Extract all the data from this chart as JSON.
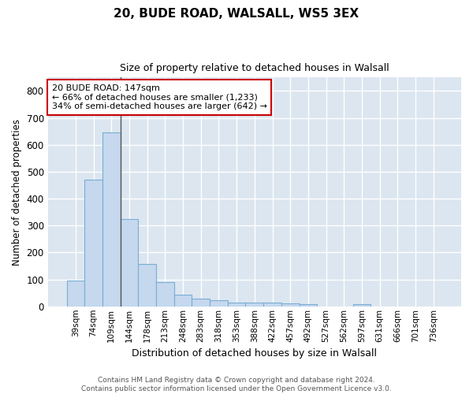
{
  "title1": "20, BUDE ROAD, WALSALL, WS5 3EX",
  "title2": "Size of property relative to detached houses in Walsall",
  "xlabel": "Distribution of detached houses by size in Walsall",
  "ylabel": "Number of detached properties",
  "categories": [
    "39sqm",
    "74sqm",
    "109sqm",
    "144sqm",
    "178sqm",
    "213sqm",
    "248sqm",
    "283sqm",
    "318sqm",
    "353sqm",
    "388sqm",
    "422sqm",
    "457sqm",
    "492sqm",
    "527sqm",
    "562sqm",
    "597sqm",
    "631sqm",
    "666sqm",
    "701sqm",
    "736sqm"
  ],
  "values": [
    95,
    470,
    645,
    325,
    158,
    90,
    42,
    28,
    22,
    15,
    15,
    13,
    10,
    8,
    0,
    0,
    8,
    0,
    0,
    0,
    0
  ],
  "bar_color": "#c5d8ee",
  "bar_edge_color": "#7aadd4",
  "plot_bg_color": "#dce6f0",
  "grid_color": "#ffffff",
  "vline_color": "#555555",
  "annotation_line1": "20 BUDE ROAD: 147sqm",
  "annotation_line2": "← 66% of detached houses are smaller (1,233)",
  "annotation_line3": "34% of semi-detached houses are larger (642) →",
  "annotation_box_color": "#ffffff",
  "annotation_box_edge": "#cc0000",
  "ylim": [
    0,
    850
  ],
  "yticks": [
    0,
    100,
    200,
    300,
    400,
    500,
    600,
    700,
    800
  ],
  "vline_index": 2.5,
  "footer1": "Contains HM Land Registry data © Crown copyright and database right 2024.",
  "footer2": "Contains public sector information licensed under the Open Government Licence v3.0."
}
